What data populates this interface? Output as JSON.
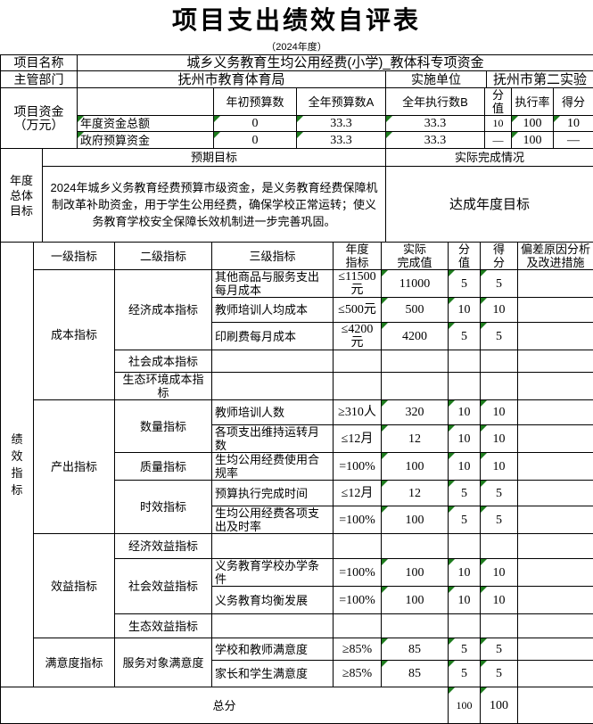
{
  "title": "项目支出绩效自评表",
  "subtitle": "（2024年度）",
  "colors": {
    "triangle": "#1e7c1e",
    "border": "#000000"
  },
  "info": {
    "project_label": "项目名称",
    "project_name": "城乡义务教育生均公用经费(小学)_教体科专项资金",
    "dept_label": "主管部门",
    "dept_name": "抚州市教育体育局",
    "unit_label": "实施单位",
    "unit_name": "抚州市第二实验"
  },
  "fund": {
    "row_label": "项目资金（万元）",
    "headers": [
      "年初预算数",
      "全年预算数A",
      "全年执行数B",
      "分值",
      "执行率",
      "得分"
    ],
    "rows": [
      {
        "label": "年度资金总额",
        "label_green": true,
        "cells": [
          {
            "v": "0",
            "g": true
          },
          {
            "v": "33.3",
            "g": true
          },
          {
            "v": "33.3",
            "g": true
          },
          {
            "v": "10",
            "g": false
          },
          {
            "v": "100",
            "g": true
          },
          {
            "v": "10",
            "g": true
          }
        ]
      },
      {
        "label": "政府预算资金",
        "label_green": true,
        "cells": [
          {
            "v": "0",
            "g": true
          },
          {
            "v": "33.3",
            "g": true
          },
          {
            "v": "33.3",
            "g": true
          },
          {
            "v": "—",
            "g": false
          },
          {
            "v": "100",
            "g": true
          },
          {
            "v": "—",
            "g": false
          }
        ]
      }
    ]
  },
  "goal": {
    "row_label": "年度总体目标",
    "expected_header": "预期目标",
    "actual_header": "实际完成情况",
    "expected_text": "2024年城乡义务教育经费预算市级资金，是义务教育经费保障机制改革补助资金，用于学生公用经费，确保学校正常运转；使义务教育学校安全保障长效机制进一步完善巩固。",
    "actual_text": "达成年度目标"
  },
  "perf": {
    "side_label": "绩效指标",
    "headers": [
      "一级指标",
      "二级指标",
      "三级指标",
      "年度\n指标",
      "实际\n完成值",
      "分\n值",
      "得\n分",
      "偏差原因分析\n及改进措施"
    ],
    "rows": [
      {
        "l1": {
          "text": "成本指标",
          "span": 5
        },
        "l2": {
          "text": "经济成本指标",
          "span": 3
        },
        "l3": "其他商品与服务支出每月成本",
        "target": "≤11500元",
        "actual": "11000",
        "weight": "5",
        "score": "5"
      },
      {
        "l3": "教师培训人均成本",
        "target": "≤500元",
        "actual": "500",
        "weight": "10",
        "score": "10"
      },
      {
        "l3": "印刷费每月成本",
        "target": "≤4200元",
        "actual": "4200",
        "weight": "5",
        "score": "5"
      },
      {
        "l2": {
          "text": "社会成本指标",
          "span": 1
        },
        "l3": "",
        "target": "",
        "actual": "",
        "weight": "",
        "score": ""
      },
      {
        "l2": {
          "text": "生态环境成本指标",
          "span": 1
        },
        "l3": "",
        "target": "",
        "actual": "",
        "weight": "",
        "score": ""
      },
      {
        "l1": {
          "text": "产出指标",
          "span": 5
        },
        "l2": {
          "text": "数量指标",
          "span": 2
        },
        "l3": "教师培训人数",
        "target": "≥310人",
        "actual": "320",
        "weight": "10",
        "score": "10"
      },
      {
        "l3": "各项支出维持运转月数",
        "target": "≤12月",
        "actual": "12",
        "weight": "10",
        "score": "10"
      },
      {
        "l2": {
          "text": "质量指标",
          "span": 1
        },
        "l3": "生均公用经费使用合规率",
        "target": "=100%",
        "actual": "100",
        "weight": "10",
        "score": "10"
      },
      {
        "l2": {
          "text": "时效指标",
          "span": 2
        },
        "l3": "预算执行完成时间",
        "target": "≤12月",
        "actual": "12",
        "weight": "5",
        "score": "5"
      },
      {
        "l3": "生均公用经费各项支出及时率",
        "target": "=100%",
        "actual": "100",
        "weight": "5",
        "score": "5"
      },
      {
        "l1": {
          "text": "效益指标",
          "span": 4
        },
        "l2": {
          "text": "经济效益指标",
          "span": 1
        },
        "l3": "",
        "target": "",
        "actual": "",
        "weight": "",
        "score": ""
      },
      {
        "l2": {
          "text": "社会效益指标",
          "span": 2
        },
        "l3": "义务教育学校办学条件",
        "target": "=100%",
        "actual": "100",
        "weight": "10",
        "score": "10"
      },
      {
        "l3": "义务教育均衡发展",
        "target": "=100%",
        "actual": "100",
        "weight": "10",
        "score": "10"
      },
      {
        "l2": {
          "text": "生态效益指标",
          "span": 1
        },
        "l3": "",
        "target": "",
        "actual": "",
        "weight": "",
        "score": ""
      },
      {
        "l1": {
          "text": "满意度指标",
          "span": 2
        },
        "l2": {
          "text": "服务对象满意度",
          "span": 2
        },
        "l3": "学校和教师满意度",
        "target": "≥85%",
        "actual": "85",
        "weight": "5",
        "score": "5"
      },
      {
        "l3": "家长和学生满意度",
        "target": "≥85%",
        "actual": "85",
        "weight": "5",
        "score": "5"
      }
    ],
    "total": {
      "label": "总分",
      "weight": "100",
      "score": "100"
    }
  }
}
